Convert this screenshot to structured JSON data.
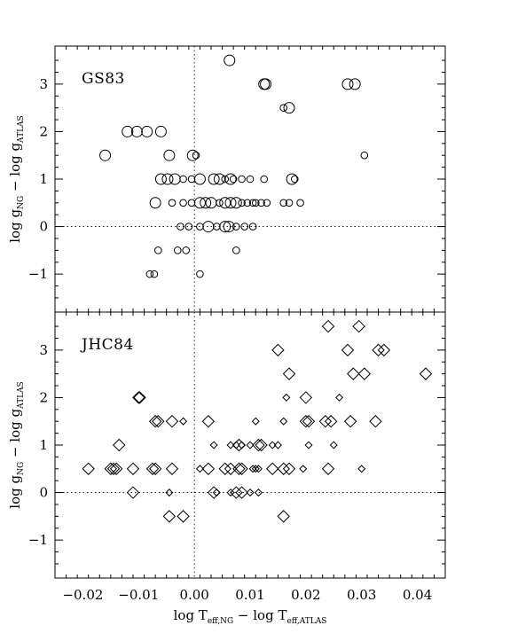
{
  "chart_data": [
    {
      "type": "scatter",
      "panel_label": "GS83",
      "marker": "circle",
      "xlim": [
        -0.025,
        0.045
      ],
      "ylim": [
        -1.8,
        3.8
      ],
      "xticks": [
        -0.02,
        -0.01,
        0.0,
        0.01,
        0.02,
        0.03,
        0.04
      ],
      "yticks": [
        -1,
        0,
        1,
        2,
        3
      ],
      "ylabel": {
        "main": "log g",
        "sub1": "NG",
        "mid": " − log g",
        "sub2": "ATLAS"
      },
      "reference_lines": {
        "x": 0,
        "y": 0,
        "style": "dotted"
      },
      "points": [
        {
          "x": 0.0063,
          "y": 3.5,
          "size": "large"
        },
        {
          "x": 0.0125,
          "y": 3.0,
          "size": "large"
        },
        {
          "x": 0.0128,
          "y": 3.0,
          "size": "large"
        },
        {
          "x": 0.0275,
          "y": 3.0,
          "size": "large"
        },
        {
          "x": 0.0288,
          "y": 3.0,
          "size": "large"
        },
        {
          "x": 0.016,
          "y": 2.5,
          "size": "small"
        },
        {
          "x": 0.017,
          "y": 2.5,
          "size": "large"
        },
        {
          "x": -0.012,
          "y": 2.0,
          "size": "large"
        },
        {
          "x": -0.0103,
          "y": 2.0,
          "size": "large"
        },
        {
          "x": -0.0085,
          "y": 2.0,
          "size": "large"
        },
        {
          "x": -0.006,
          "y": 2.0,
          "size": "large"
        },
        {
          "x": -0.0003,
          "y": 1.5,
          "size": "large"
        },
        {
          "x": 0.0003,
          "y": 1.5,
          "size": "small"
        },
        {
          "x": -0.0045,
          "y": 1.5,
          "size": "large"
        },
        {
          "x": -0.016,
          "y": 1.5,
          "size": "large"
        },
        {
          "x": 0.0305,
          "y": 1.5,
          "size": "small"
        },
        {
          "x": -0.006,
          "y": 1.0,
          "size": "large"
        },
        {
          "x": -0.0048,
          "y": 1.0,
          "size": "large"
        },
        {
          "x": -0.0035,
          "y": 1.0,
          "size": "large"
        },
        {
          "x": -0.002,
          "y": 1.0,
          "size": "small"
        },
        {
          "x": -0.0005,
          "y": 1.0,
          "size": "small"
        },
        {
          "x": 0.001,
          "y": 1.0,
          "size": "large"
        },
        {
          "x": 0.0035,
          "y": 1.0,
          "size": "large"
        },
        {
          "x": 0.0045,
          "y": 1.0,
          "size": "large"
        },
        {
          "x": 0.0055,
          "y": 1.0,
          "size": "small"
        },
        {
          "x": 0.0065,
          "y": 1.0,
          "size": "large"
        },
        {
          "x": 0.007,
          "y": 1.0,
          "size": "small"
        },
        {
          "x": 0.0085,
          "y": 1.0,
          "size": "small"
        },
        {
          "x": 0.01,
          "y": 1.0,
          "size": "small"
        },
        {
          "x": 0.0125,
          "y": 1.0,
          "size": "small"
        },
        {
          "x": 0.0175,
          "y": 1.0,
          "size": "large"
        },
        {
          "x": 0.018,
          "y": 1.0,
          "size": "small"
        },
        {
          "x": -0.007,
          "y": 0.5,
          "size": "large"
        },
        {
          "x": -0.004,
          "y": 0.5,
          "size": "small"
        },
        {
          "x": -0.002,
          "y": 0.5,
          "size": "small"
        },
        {
          "x": -0.0005,
          "y": 0.5,
          "size": "small"
        },
        {
          "x": 0.001,
          "y": 0.5,
          "size": "large"
        },
        {
          "x": 0.002,
          "y": 0.5,
          "size": "large"
        },
        {
          "x": 0.003,
          "y": 0.5,
          "size": "large"
        },
        {
          "x": 0.0045,
          "y": 0.5,
          "size": "small"
        },
        {
          "x": 0.0055,
          "y": 0.5,
          "size": "large"
        },
        {
          "x": 0.0065,
          "y": 0.5,
          "size": "large"
        },
        {
          "x": 0.0075,
          "y": 0.5,
          "size": "large"
        },
        {
          "x": 0.0085,
          "y": 0.5,
          "size": "small"
        },
        {
          "x": 0.0095,
          "y": 0.5,
          "size": "small"
        },
        {
          "x": 0.0105,
          "y": 0.5,
          "size": "small"
        },
        {
          "x": 0.011,
          "y": 0.5,
          "size": "small"
        },
        {
          "x": 0.012,
          "y": 0.5,
          "size": "small"
        },
        {
          "x": 0.013,
          "y": 0.5,
          "size": "small"
        },
        {
          "x": 0.016,
          "y": 0.5,
          "size": "small"
        },
        {
          "x": 0.017,
          "y": 0.5,
          "size": "small"
        },
        {
          "x": 0.019,
          "y": 0.5,
          "size": "small"
        },
        {
          "x": -0.0025,
          "y": 0.0,
          "size": "small"
        },
        {
          "x": -0.001,
          "y": 0.0,
          "size": "small"
        },
        {
          "x": 0.001,
          "y": 0.0,
          "size": "small"
        },
        {
          "x": 0.0025,
          "y": 0.0,
          "size": "large"
        },
        {
          "x": 0.004,
          "y": 0.0,
          "size": "small"
        },
        {
          "x": 0.0055,
          "y": 0.0,
          "size": "large"
        },
        {
          "x": 0.0062,
          "y": 0.0,
          "size": "large"
        },
        {
          "x": 0.0075,
          "y": 0.0,
          "size": "small"
        },
        {
          "x": 0.009,
          "y": 0.0,
          "size": "small"
        },
        {
          "x": 0.0105,
          "y": 0.0,
          "size": "small"
        },
        {
          "x": -0.0065,
          "y": -0.5,
          "size": "small"
        },
        {
          "x": -0.003,
          "y": -0.5,
          "size": "small"
        },
        {
          "x": -0.0015,
          "y": -0.5,
          "size": "small"
        },
        {
          "x": 0.0075,
          "y": -0.5,
          "size": "small"
        },
        {
          "x": -0.008,
          "y": -1.0,
          "size": "small"
        },
        {
          "x": -0.0072,
          "y": -1.0,
          "size": "small"
        },
        {
          "x": 0.001,
          "y": -1.0,
          "size": "small"
        }
      ]
    },
    {
      "type": "scatter",
      "panel_label": "JHC84",
      "marker": "diamond",
      "xlim": [
        -0.025,
        0.045
      ],
      "ylim": [
        -1.8,
        3.8
      ],
      "xticks": [
        -0.02,
        -0.01,
        0.0,
        0.01,
        0.02,
        0.03,
        0.04
      ],
      "xtick_labels": [
        "−0.02",
        "−0.01",
        "0.00",
        "0.01",
        "0.02",
        "0.03",
        "0.04"
      ],
      "yticks": [
        -1,
        0,
        1,
        2,
        3
      ],
      "xlabel": {
        "main": "log T",
        "sub1": "eff,NG",
        "mid": " − log T",
        "sub2": "eff,ATLAS"
      },
      "ylabel": {
        "main": "log g",
        "sub1": "NG",
        "mid": " − log g",
        "sub2": "ATLAS"
      },
      "reference_lines": {
        "x": 0,
        "y": 0,
        "style": "dotted"
      },
      "points": [
        {
          "x": 0.024,
          "y": 3.5,
          "size": "large"
        },
        {
          "x": 0.0295,
          "y": 3.5,
          "size": "large"
        },
        {
          "x": 0.015,
          "y": 3.0,
          "size": "large"
        },
        {
          "x": 0.0275,
          "y": 3.0,
          "size": "large"
        },
        {
          "x": 0.033,
          "y": 3.0,
          "size": "large"
        },
        {
          "x": 0.034,
          "y": 3.0,
          "size": "large"
        },
        {
          "x": 0.017,
          "y": 2.5,
          "size": "large"
        },
        {
          "x": 0.0285,
          "y": 2.5,
          "size": "large"
        },
        {
          "x": 0.0305,
          "y": 2.5,
          "size": "large"
        },
        {
          "x": 0.0415,
          "y": 2.5,
          "size": "large"
        },
        {
          "x": -0.01,
          "y": 2.0,
          "size": "large"
        },
        {
          "x": -0.0098,
          "y": 2.0,
          "size": "large"
        },
        {
          "x": 0.0165,
          "y": 2.0,
          "size": "small"
        },
        {
          "x": 0.02,
          "y": 2.0,
          "size": "large"
        },
        {
          "x": 0.026,
          "y": 2.0,
          "size": "small"
        },
        {
          "x": -0.007,
          "y": 1.5,
          "size": "large"
        },
        {
          "x": -0.0065,
          "y": 1.5,
          "size": "large"
        },
        {
          "x": -0.004,
          "y": 1.5,
          "size": "large"
        },
        {
          "x": -0.002,
          "y": 1.5,
          "size": "small"
        },
        {
          "x": 0.0025,
          "y": 1.5,
          "size": "large"
        },
        {
          "x": 0.011,
          "y": 1.5,
          "size": "small"
        },
        {
          "x": 0.016,
          "y": 1.5,
          "size": "small"
        },
        {
          "x": 0.02,
          "y": 1.5,
          "size": "large"
        },
        {
          "x": 0.0205,
          "y": 1.5,
          "size": "large"
        },
        {
          "x": 0.0235,
          "y": 1.5,
          "size": "large"
        },
        {
          "x": 0.0245,
          "y": 1.5,
          "size": "large"
        },
        {
          "x": 0.028,
          "y": 1.5,
          "size": "large"
        },
        {
          "x": 0.0325,
          "y": 1.5,
          "size": "large"
        },
        {
          "x": -0.0135,
          "y": 1.0,
          "size": "large"
        },
        {
          "x": 0.0035,
          "y": 1.0,
          "size": "small"
        },
        {
          "x": 0.0065,
          "y": 1.0,
          "size": "small"
        },
        {
          "x": 0.0075,
          "y": 1.0,
          "size": "small"
        },
        {
          "x": 0.008,
          "y": 1.0,
          "size": "large"
        },
        {
          "x": 0.0085,
          "y": 1.0,
          "size": "small"
        },
        {
          "x": 0.01,
          "y": 1.0,
          "size": "small"
        },
        {
          "x": 0.0115,
          "y": 1.0,
          "size": "large"
        },
        {
          "x": 0.012,
          "y": 1.0,
          "size": "large"
        },
        {
          "x": 0.014,
          "y": 1.0,
          "size": "small"
        },
        {
          "x": 0.015,
          "y": 1.0,
          "size": "small"
        },
        {
          "x": 0.0205,
          "y": 1.0,
          "size": "small"
        },
        {
          "x": 0.025,
          "y": 1.0,
          "size": "small"
        },
        {
          "x": -0.019,
          "y": 0.5,
          "size": "large"
        },
        {
          "x": -0.015,
          "y": 0.5,
          "size": "large"
        },
        {
          "x": -0.0145,
          "y": 0.5,
          "size": "large"
        },
        {
          "x": -0.014,
          "y": 0.5,
          "size": "large"
        },
        {
          "x": -0.011,
          "y": 0.5,
          "size": "large"
        },
        {
          "x": -0.0075,
          "y": 0.5,
          "size": "large"
        },
        {
          "x": -0.007,
          "y": 0.5,
          "size": "large"
        },
        {
          "x": -0.004,
          "y": 0.5,
          "size": "large"
        },
        {
          "x": 0.001,
          "y": 0.5,
          "size": "small"
        },
        {
          "x": 0.0025,
          "y": 0.5,
          "size": "large"
        },
        {
          "x": 0.0055,
          "y": 0.5,
          "size": "large"
        },
        {
          "x": 0.0065,
          "y": 0.5,
          "size": "large"
        },
        {
          "x": 0.008,
          "y": 0.5,
          "size": "large"
        },
        {
          "x": 0.0085,
          "y": 0.5,
          "size": "large"
        },
        {
          "x": 0.0105,
          "y": 0.5,
          "size": "small"
        },
        {
          "x": 0.011,
          "y": 0.5,
          "size": "small"
        },
        {
          "x": 0.0115,
          "y": 0.5,
          "size": "small"
        },
        {
          "x": 0.014,
          "y": 0.5,
          "size": "large"
        },
        {
          "x": 0.016,
          "y": 0.5,
          "size": "large"
        },
        {
          "x": 0.017,
          "y": 0.5,
          "size": "large"
        },
        {
          "x": 0.0195,
          "y": 0.5,
          "size": "small"
        },
        {
          "x": 0.024,
          "y": 0.5,
          "size": "large"
        },
        {
          "x": 0.03,
          "y": 0.5,
          "size": "small"
        },
        {
          "x": -0.011,
          "y": 0.0,
          "size": "large"
        },
        {
          "x": -0.0045,
          "y": 0.0,
          "size": "small"
        },
        {
          "x": 0.0035,
          "y": 0.0,
          "size": "large"
        },
        {
          "x": 0.004,
          "y": 0.0,
          "size": "small"
        },
        {
          "x": 0.0065,
          "y": 0.0,
          "size": "small"
        },
        {
          "x": 0.0075,
          "y": 0.0,
          "size": "large"
        },
        {
          "x": 0.0085,
          "y": 0.0,
          "size": "large"
        },
        {
          "x": 0.01,
          "y": 0.0,
          "size": "small"
        },
        {
          "x": 0.0115,
          "y": 0.0,
          "size": "small"
        },
        {
          "x": -0.0045,
          "y": -0.5,
          "size": "large"
        },
        {
          "x": -0.002,
          "y": -0.5,
          "size": "large"
        },
        {
          "x": 0.016,
          "y": -0.5,
          "size": "large"
        }
      ]
    }
  ]
}
